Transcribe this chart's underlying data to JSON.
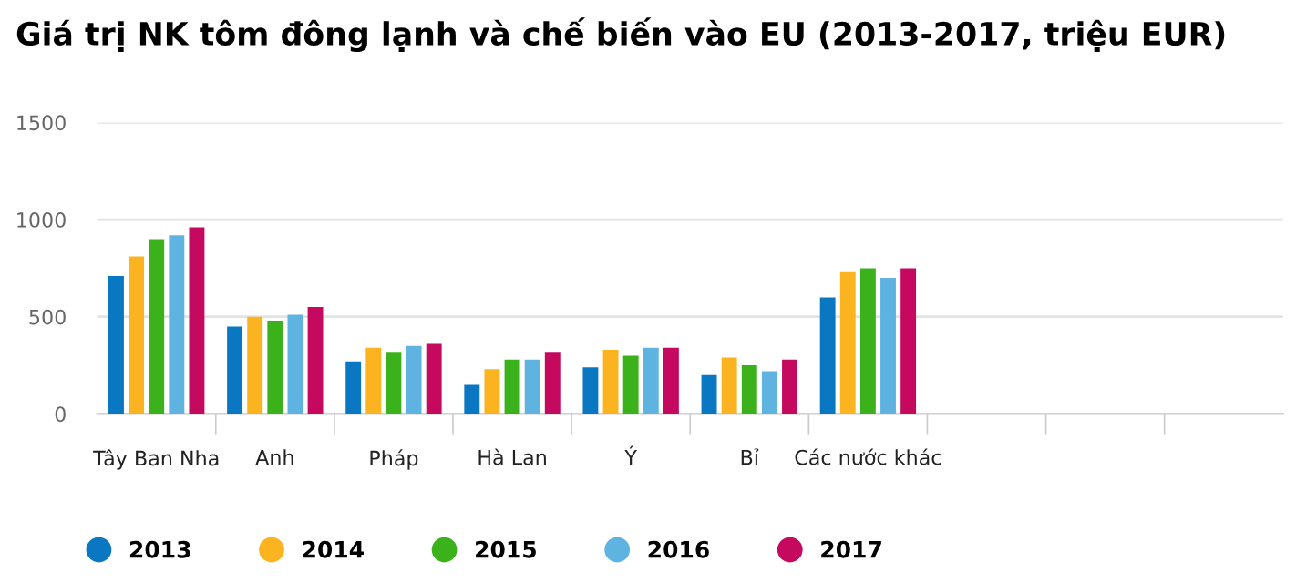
{
  "chart_data": {
    "type": "bar",
    "title": "Giá trị NK tôm đông lạnh và chế biến vào EU (2013-2017, triệu EUR)",
    "categories": [
      "Tây Ban Nha",
      "Anh",
      "Pháp",
      "Hà Lan",
      "Ý",
      "Bỉ",
      "Các nước khác",
      null,
      null,
      null
    ],
    "series": [
      {
        "name": "2013",
        "color": "#0a77c2",
        "values": [
          710,
          450,
          270,
          150,
          240,
          200,
          600,
          null,
          null,
          null
        ]
      },
      {
        "name": "2014",
        "color": "#fbb41f",
        "values": [
          810,
          500,
          340,
          230,
          330,
          290,
          730,
          null,
          null,
          null
        ]
      },
      {
        "name": "2015",
        "color": "#3bb21b",
        "values": [
          900,
          480,
          320,
          280,
          300,
          250,
          750,
          null,
          null,
          null
        ]
      },
      {
        "name": "2016",
        "color": "#5fb3e0",
        "values": [
          920,
          510,
          350,
          280,
          340,
          220,
          700,
          null,
          null,
          null
        ]
      },
      {
        "name": "2017",
        "color": "#c5095f",
        "values": [
          960,
          550,
          360,
          320,
          340,
          280,
          750,
          null,
          null,
          null
        ]
      }
    ],
    "ylim": [
      0,
      1500
    ],
    "yticks": [
      0,
      500,
      1000,
      1500
    ],
    "grid": "y",
    "legend": "bottom",
    "marker": "circle"
  }
}
